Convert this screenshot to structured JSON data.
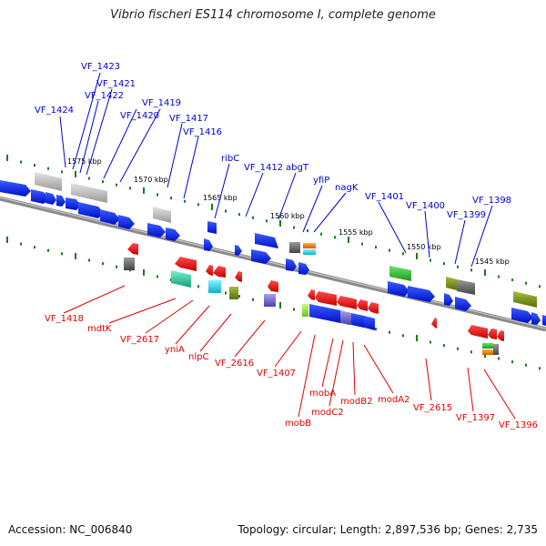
{
  "title": "Vibrio fischeri ES114 chromosome I, complete genome",
  "footer": {
    "accession": "Accession: NC_006840",
    "topology": "Topology: circular; Length: 2,897,536 bp; Genes: 2,735"
  },
  "colors": {
    "forward_label": "#0000cc",
    "reverse_label": "#dd0000",
    "backbone": "#888888",
    "tick": "#1a7a1a"
  },
  "kbp_markers": [
    "1575 kbp",
    "1570 kbp",
    "1565 kbp",
    "1560 kbp",
    "1555 kbp",
    "1550 kbp",
    "1545 kbp"
  ],
  "forward_labels": [
    "VF_1423",
    "VF_1421",
    "VF_1422",
    "VF_1419",
    "VF_1424",
    "VF_1420",
    "VF_1417",
    "VF_1416",
    "ribC",
    "VF_1412",
    "abgT",
    "yfiP",
    "nagK",
    "VF_1401",
    "VF_1400",
    "VF_1399",
    "VF_1398"
  ],
  "reverse_labels": [
    "VF_1418",
    "mdtK",
    "VF_2617",
    "yniA",
    "nlpC",
    "VF_2616",
    "VF_1407",
    "mobA",
    "modC2",
    "modB2",
    "modA2",
    "mobB",
    "VF_2615",
    "VF_1397",
    "VF_1396"
  ]
}
